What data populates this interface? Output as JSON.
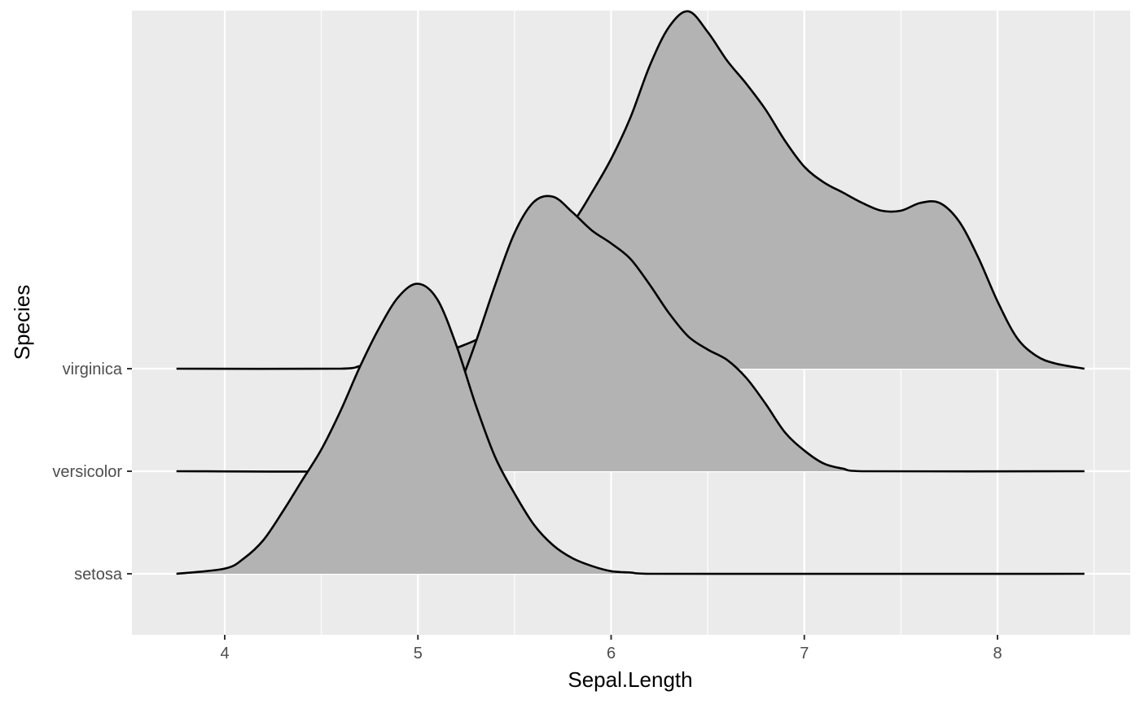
{
  "chart_data": {
    "type": "ridgeline",
    "title": "",
    "xlabel": "Sepal.Length",
    "ylabel": "Species",
    "xlim": [
      3.52,
      8.48
    ],
    "x_range_drawn": [
      3.75,
      8.45
    ],
    "x_ticks": [
      4,
      5,
      6,
      7,
      8
    ],
    "x_tick_labels": [
      "4",
      "5",
      "6",
      "7",
      "8"
    ],
    "categories": [
      "setosa",
      "versicolor",
      "virginica"
    ],
    "y_tick_labels": [
      "setosa",
      "versicolor",
      "virginica"
    ],
    "grid": true,
    "legend": "none",
    "colors": {
      "panel": "#ebebeb",
      "gridline": "#ffffff",
      "fill": "#b3b3b3",
      "outline": "#000000",
      "tick_text": "#4d4d4d",
      "title_text": "#000000"
    },
    "series": [
      {
        "name": "setosa",
        "points": [
          [
            3.75,
            0.0
          ],
          [
            4.0,
            0.02
          ],
          [
            4.1,
            0.06
          ],
          [
            4.2,
            0.13
          ],
          [
            4.3,
            0.24
          ],
          [
            4.4,
            0.36
          ],
          [
            4.5,
            0.48
          ],
          [
            4.6,
            0.63
          ],
          [
            4.7,
            0.8
          ],
          [
            4.8,
            0.95
          ],
          [
            4.9,
            1.07
          ],
          [
            5.0,
            1.12
          ],
          [
            5.1,
            1.06
          ],
          [
            5.2,
            0.88
          ],
          [
            5.3,
            0.65
          ],
          [
            5.4,
            0.45
          ],
          [
            5.5,
            0.31
          ],
          [
            5.6,
            0.19
          ],
          [
            5.7,
            0.11
          ],
          [
            5.8,
            0.06
          ],
          [
            5.9,
            0.03
          ],
          [
            6.0,
            0.01
          ],
          [
            6.1,
            0.005
          ],
          [
            6.2,
            0.0
          ],
          [
            8.45,
            0.0
          ]
        ]
      },
      {
        "name": "versicolor",
        "points": [
          [
            3.75,
            0.0
          ],
          [
            4.8,
            0.0
          ],
          [
            4.9,
            0.02
          ],
          [
            5.0,
            0.06
          ],
          [
            5.1,
            0.14
          ],
          [
            5.2,
            0.3
          ],
          [
            5.3,
            0.5
          ],
          [
            5.4,
            0.72
          ],
          [
            5.5,
            0.92
          ],
          [
            5.6,
            1.04
          ],
          [
            5.7,
            1.06
          ],
          [
            5.8,
            1.0
          ],
          [
            5.9,
            0.93
          ],
          [
            6.0,
            0.88
          ],
          [
            6.1,
            0.82
          ],
          [
            6.2,
            0.72
          ],
          [
            6.3,
            0.61
          ],
          [
            6.4,
            0.52
          ],
          [
            6.5,
            0.47
          ],
          [
            6.6,
            0.43
          ],
          [
            6.7,
            0.36
          ],
          [
            6.8,
            0.26
          ],
          [
            6.9,
            0.15
          ],
          [
            7.0,
            0.08
          ],
          [
            7.1,
            0.03
          ],
          [
            7.2,
            0.01
          ],
          [
            7.3,
            0.0
          ],
          [
            8.45,
            0.0
          ]
        ]
      },
      {
        "name": "virginica",
        "points": [
          [
            3.75,
            0.0
          ],
          [
            4.6,
            0.0
          ],
          [
            4.7,
            0.01
          ],
          [
            4.8,
            0.02
          ],
          [
            4.9,
            0.03
          ],
          [
            5.0,
            0.04
          ],
          [
            5.2,
            0.08
          ],
          [
            5.4,
            0.16
          ],
          [
            5.6,
            0.35
          ],
          [
            5.8,
            0.56
          ],
          [
            5.9,
            0.68
          ],
          [
            6.0,
            0.81
          ],
          [
            6.1,
            0.97
          ],
          [
            6.2,
            1.17
          ],
          [
            6.3,
            1.32
          ],
          [
            6.4,
            1.38
          ],
          [
            6.5,
            1.3
          ],
          [
            6.6,
            1.19
          ],
          [
            6.7,
            1.1
          ],
          [
            6.8,
            1.0
          ],
          [
            6.9,
            0.88
          ],
          [
            7.0,
            0.78
          ],
          [
            7.1,
            0.72
          ],
          [
            7.2,
            0.68
          ],
          [
            7.3,
            0.64
          ],
          [
            7.4,
            0.61
          ],
          [
            7.5,
            0.61
          ],
          [
            7.6,
            0.64
          ],
          [
            7.7,
            0.64
          ],
          [
            7.8,
            0.57
          ],
          [
            7.9,
            0.43
          ],
          [
            8.0,
            0.26
          ],
          [
            8.1,
            0.12
          ],
          [
            8.2,
            0.05
          ],
          [
            8.3,
            0.02
          ],
          [
            8.45,
            0.0
          ]
        ]
      }
    ]
  }
}
